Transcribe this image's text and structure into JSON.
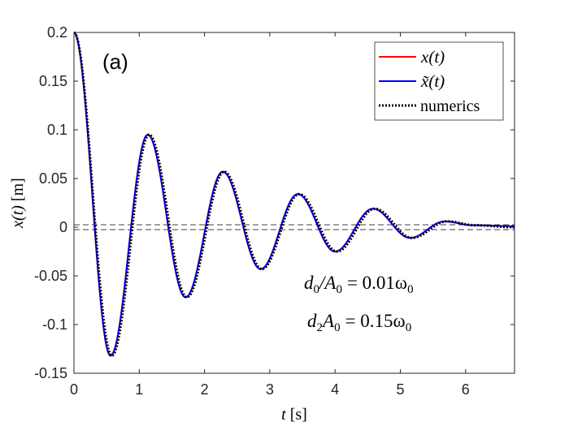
{
  "chart_data": {
    "type": "line",
    "panel_label": "(a)",
    "xlabel_var": "t",
    "xlabel_unit": "[s]",
    "ylabel_var": "x(t)",
    "ylabel_unit": "[m]",
    "xlim": [
      0,
      6.75
    ],
    "ylim": [
      -0.15,
      0.2
    ],
    "x_ticks": [
      0,
      1,
      2,
      3,
      4,
      5,
      6
    ],
    "x_tick_labels": [
      "0",
      "1",
      "2",
      "3",
      "4",
      "5",
      "6"
    ],
    "y_ticks": [
      0.2,
      0.15,
      0.1,
      0.05,
      0,
      -0.05,
      -0.1,
      -0.15
    ],
    "y_tick_labels": [
      "0.2",
      "0.15",
      "0.1",
      "0.05",
      "0",
      "-0.05",
      "-0.1",
      "-0.15"
    ],
    "grid": false,
    "legend_position": "top-right",
    "series": [
      {
        "name": "x(t)",
        "color": "#ff0000",
        "style": "solid",
        "model": {
          "A0": 0.2,
          "period": 1.147,
          "extrema_t": [
            0,
            0.56,
            1.13,
            1.71,
            2.28,
            2.86,
            3.43,
            4.0,
            4.58,
            5.15,
            5.68,
            6.1,
            6.75
          ],
          "extrema_x": [
            0.2,
            -0.132,
            0.095,
            -0.072,
            0.057,
            -0.043,
            0.034,
            -0.025,
            0.019,
            -0.011,
            0.006,
            0.002,
            0.001
          ]
        }
      },
      {
        "name": "x̃(t)",
        "color": "#0000ff",
        "style": "solid",
        "model": {
          "A0": 0.2,
          "period": 1.147,
          "extrema_t": [
            0,
            0.56,
            1.13,
            1.71,
            2.28,
            2.86,
            3.43,
            4.0,
            4.58,
            5.15,
            5.68,
            6.1,
            6.75
          ],
          "extrema_x": [
            0.2,
            -0.132,
            0.095,
            -0.072,
            0.057,
            -0.043,
            0.034,
            -0.025,
            0.019,
            -0.011,
            0.006,
            0.002,
            0.001
          ]
        }
      },
      {
        "name": "numerics",
        "color": "#000000",
        "style": "dotted",
        "model": {
          "A0": 0.2,
          "period": 1.147,
          "extrema_t": [
            0,
            0.58,
            1.15,
            1.73,
            2.3,
            2.88,
            3.45,
            4.03,
            4.61,
            5.18,
            5.72,
            6.15,
            6.75
          ],
          "extrema_x": [
            0.2,
            -0.132,
            0.095,
            -0.072,
            0.057,
            -0.043,
            0.034,
            -0.025,
            0.019,
            -0.011,
            0.006,
            0.002,
            0.0
          ]
        }
      }
    ],
    "reference_lines": [
      {
        "y": 0.0025,
        "style": "dashed",
        "color": "#404040"
      },
      {
        "y": -0.0025,
        "style": "dashed",
        "color": "#404040"
      }
    ],
    "annotations": [
      {
        "text_lhs_num": "d",
        "text_lhs_sub": "0",
        "text_lhs_den": "/A",
        "text_lhs_den_sub": "0",
        "text_rhs": "= 0.01ω",
        "text_rhs_sub": "0"
      },
      {
        "text_lhs_num": "d",
        "text_lhs_sub": "2",
        "text_lhs_den": "A",
        "text_lhs_den_sub": "0",
        "text_rhs": "= 0.15ω",
        "text_rhs_sub": "0"
      }
    ]
  }
}
